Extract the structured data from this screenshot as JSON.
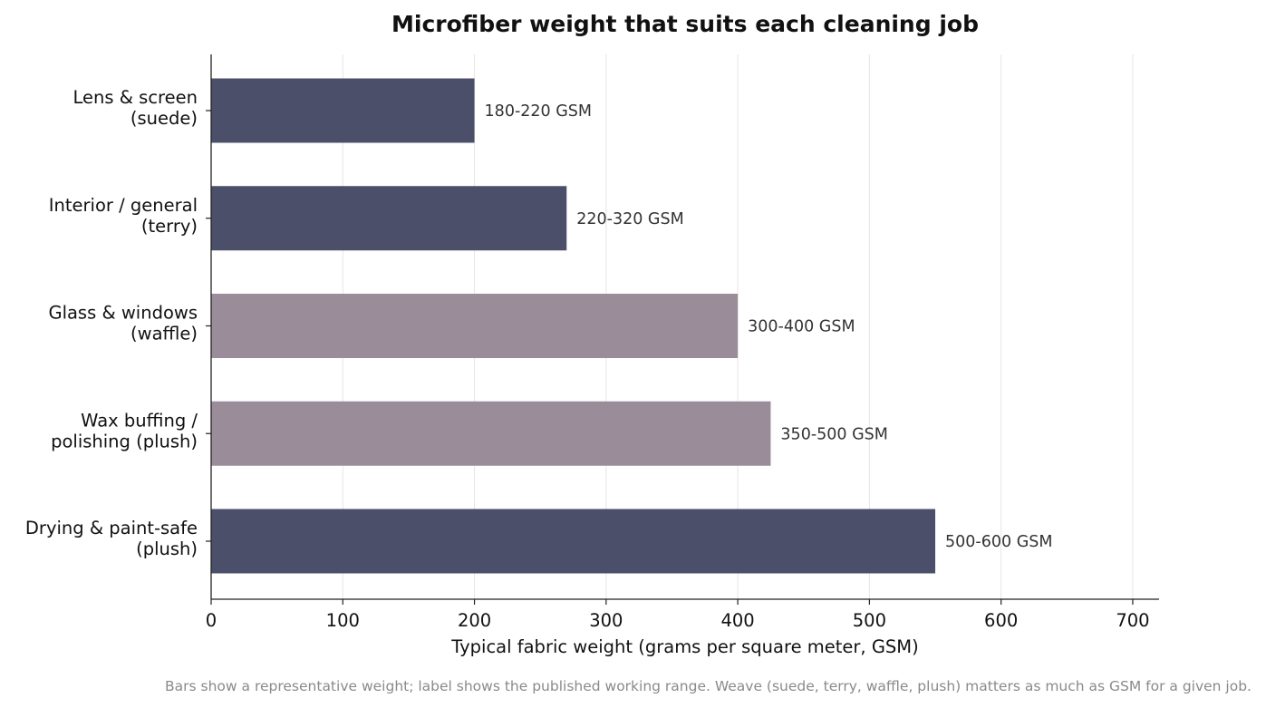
{
  "chart_data": {
    "type": "bar",
    "orientation": "horizontal",
    "title": "Microfiber weight that suits each cleaning job",
    "xlabel": "Typical fabric weight (grams per square meter, GSM)",
    "ylabel": "",
    "xlim": [
      0,
      720
    ],
    "xticks": [
      "0",
      "100",
      "200",
      "300",
      "400",
      "500",
      "600",
      "700"
    ],
    "grid": "vertical",
    "categories": [
      [
        "Lens & screen",
        "(suede)"
      ],
      [
        "Interior / general",
        "(terry)"
      ],
      [
        "Glass & windows",
        "(waffle)"
      ],
      [
        "Wax buffing /",
        "polishing (plush)"
      ],
      [
        "Drying & paint-safe",
        "(plush)"
      ]
    ],
    "values": [
      200,
      270,
      400,
      425,
      550
    ],
    "labels": [
      "180-220 GSM",
      "220-320 GSM",
      "300-400 GSM",
      "350-500 GSM",
      "500-600 GSM"
    ],
    "colors": [
      "#4b4f6a",
      "#4b4f6a",
      "#9b8c9a",
      "#9b8c9a",
      "#4b4f6a"
    ],
    "footnote": "Bars show a representative weight; label shows the published working range. Weave (suede, terry, waffle, plush) matters as much as GSM for a given job."
  }
}
